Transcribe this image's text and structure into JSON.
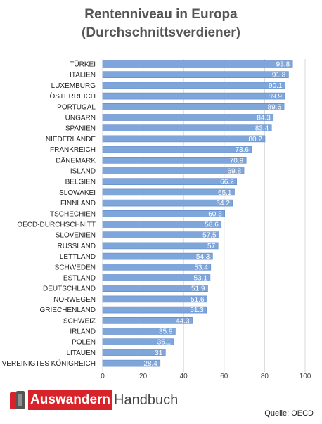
{
  "title_line1": "Rentenniveau in Europa",
  "title_line2": "(Durchschnittsverdiener)",
  "colors": {
    "bar": "#7fa6da",
    "bar_edge": "#5d86c6",
    "grid": "#d9d9d9"
  },
  "chart_data": {
    "type": "bar",
    "orientation": "horizontal",
    "categories": [
      "TÜRKEI",
      "ITALIEN",
      "LUXEMBURG",
      "ÖSTERREICH",
      "PORTUGAL",
      "UNGARN",
      "SPANIEN",
      "NIEDERLANDE",
      "FRANKREICH",
      "DÄNEMARK",
      "ISLAND",
      "BELGIEN",
      "SLOWAKEI",
      "FINNLAND",
      "TSCHECHIEN",
      "OECD-DURCHSCHNITT",
      "SLOVENIEN",
      "RUSSLAND",
      "LETTLAND",
      "SCHWEDEN",
      "ESTLAND",
      "DEUTSCHLAND",
      "NORWEGEN",
      "GRIECHENLAND",
      "SCHWEIZ",
      "IRLAND",
      "POLEN",
      "LITAUEN",
      "VEREINIGTES KÖNIGREICH"
    ],
    "values": [
      93.8,
      91.8,
      90.1,
      89.9,
      89.6,
      84.3,
      83.4,
      80.2,
      73.6,
      70.9,
      69.8,
      66.2,
      65.1,
      64.2,
      60.3,
      58.6,
      57.5,
      57,
      54.3,
      53.4,
      53.1,
      51.9,
      51.6,
      51.3,
      44.3,
      35.9,
      35.1,
      31,
      28.4
    ],
    "value_labels": [
      "93.8",
      "91.8",
      "90.1",
      "89.9",
      "89.6",
      "84.3",
      "83.4",
      "80.2",
      "73.6",
      "70.9",
      "69.8",
      "66.2",
      "65.1",
      "64.2",
      "60.3",
      "58.6",
      "57.5",
      "57",
      "54.3",
      "53.4",
      "53.1",
      "51.9",
      "51.6",
      "51.3",
      "44.3",
      "35.9",
      "35.1",
      "31",
      "28.4"
    ],
    "xticks": [
      "0",
      "20",
      "40",
      "60",
      "80",
      "100"
    ],
    "xlim": [
      0,
      100
    ],
    "grid": true
  },
  "footer": {
    "logo_part1": "Auswandern",
    "logo_part2": "Handbuch",
    "source": "Quelle: OECD"
  }
}
